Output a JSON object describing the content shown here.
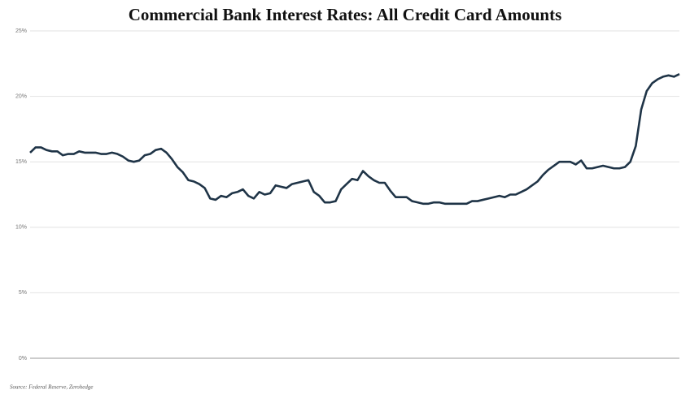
{
  "chart_data": {
    "type": "line",
    "title": "Commercial Bank Interest Rates: All Credit Card Amounts",
    "source": "Source: Federal Reserve, Zerohedge",
    "ylim": [
      0,
      25
    ],
    "yticks": [
      {
        "value": 0,
        "label": "0%"
      },
      {
        "value": 5,
        "label": "5%"
      },
      {
        "value": 10,
        "label": "10%"
      },
      {
        "value": 15,
        "label": "15%"
      },
      {
        "value": 20,
        "label": "20%"
      },
      {
        "value": 25,
        "label": "25%"
      }
    ],
    "grid": true,
    "color": "#1f3447",
    "values": [
      15.7,
      16.1,
      16.1,
      15.9,
      15.8,
      15.8,
      15.5,
      15.6,
      15.6,
      15.8,
      15.7,
      15.7,
      15.7,
      15.6,
      15.6,
      15.7,
      15.6,
      15.4,
      15.1,
      15.0,
      15.1,
      15.5,
      15.6,
      15.9,
      16.0,
      15.7,
      15.2,
      14.6,
      14.2,
      13.6,
      13.5,
      13.3,
      13.0,
      12.2,
      12.1,
      12.4,
      12.3,
      12.6,
      12.7,
      12.9,
      12.4,
      12.2,
      12.7,
      12.5,
      12.6,
      13.2,
      13.1,
      13.0,
      13.3,
      13.4,
      13.5,
      13.6,
      12.7,
      12.4,
      11.9,
      11.9,
      12.0,
      12.9,
      13.3,
      13.7,
      13.6,
      14.3,
      13.9,
      13.6,
      13.4,
      13.4,
      12.8,
      12.3,
      12.3,
      12.3,
      12.0,
      11.9,
      11.8,
      11.8,
      11.9,
      11.9,
      11.8,
      11.8,
      11.8,
      11.8,
      11.8,
      12.0,
      12.0,
      12.1,
      12.2,
      12.3,
      12.4,
      12.3,
      12.5,
      12.5,
      12.7,
      12.9,
      13.2,
      13.5,
      14.0,
      14.4,
      14.7,
      15.0,
      15.0,
      15.0,
      14.8,
      15.1,
      14.5,
      14.5,
      14.6,
      14.7,
      14.6,
      14.5,
      14.5,
      14.6,
      15.0,
      16.2,
      19.0,
      20.4,
      21.0,
      21.3,
      21.5,
      21.6,
      21.5,
      21.7
    ]
  }
}
